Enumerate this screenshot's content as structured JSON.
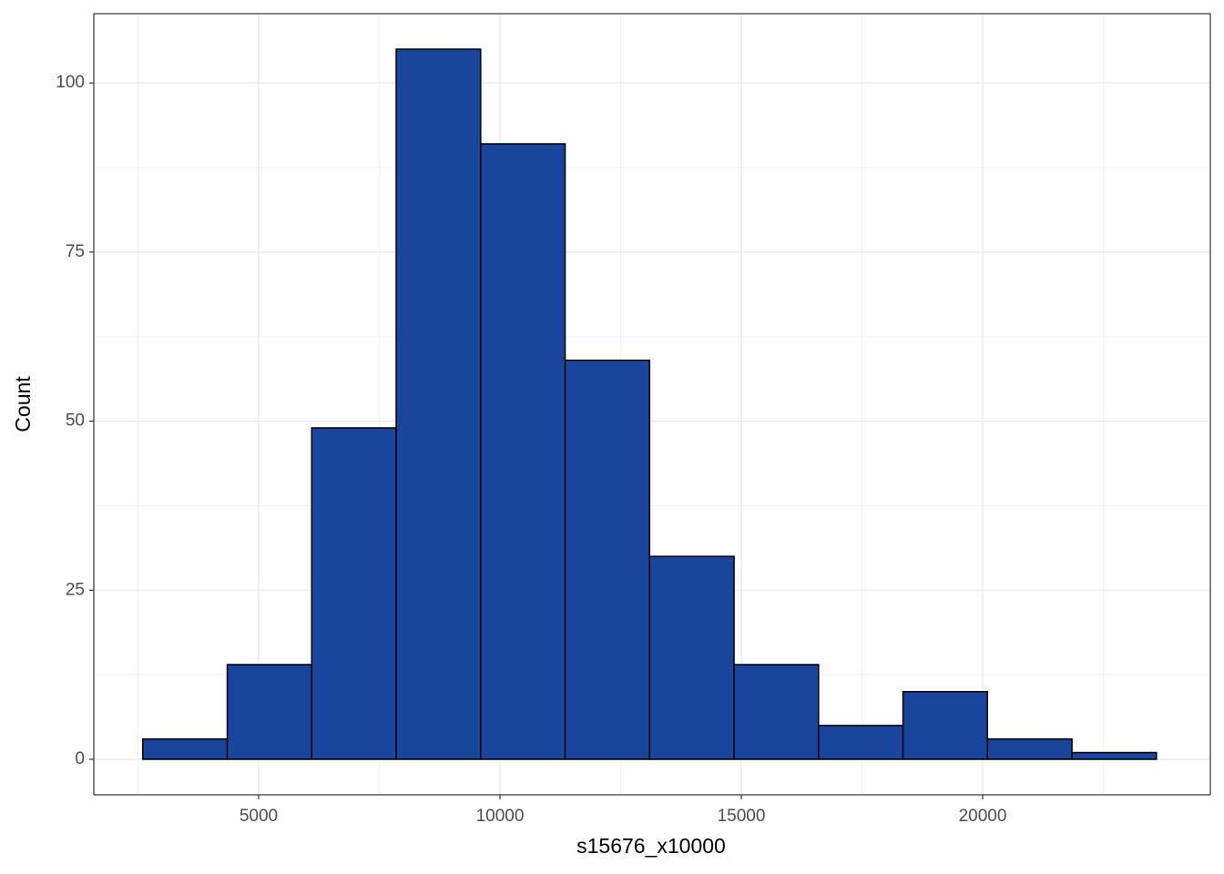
{
  "chart_data": {
    "type": "histogram",
    "x_label": "s15676_x10000",
    "y_label": "Count",
    "bins": [
      2600,
      4350,
      6100,
      7850,
      9600,
      11350,
      13100,
      14850,
      16600,
      18350,
      20100,
      21850,
      23600
    ],
    "values": [
      3,
      14,
      49,
      105,
      91,
      59,
      30,
      14,
      5,
      10,
      3,
      1
    ],
    "color": "#1a459c",
    "edge_color": "#000000",
    "xlim": [
      1585,
      24717
    ],
    "xticks": [
      5000,
      10000,
      15000,
      20000
    ],
    "ylim": [
      -5.25,
      110.25
    ],
    "yticks": [
      0,
      25,
      50,
      75,
      100
    ],
    "grid": true
  }
}
